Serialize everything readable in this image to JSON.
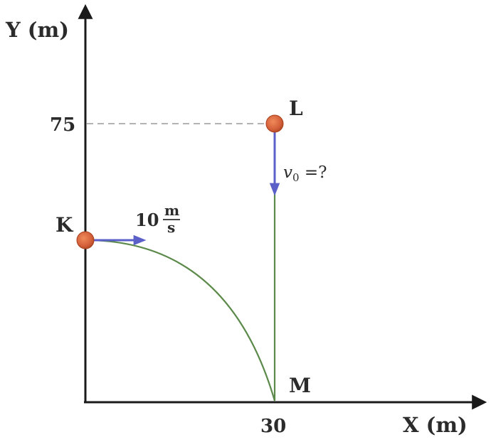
{
  "axes": {
    "y_label": "Y (m)",
    "x_label": "X (m)",
    "y_tick": "75",
    "x_tick": "30"
  },
  "points": {
    "k": {
      "label": "K"
    },
    "l": {
      "label": "L"
    },
    "m": {
      "label": "M"
    }
  },
  "velocity_k": {
    "value": "10",
    "unit_num": "m",
    "unit_den": "s"
  },
  "velocity_l": {
    "symbol": "v",
    "subscript": "0",
    "suffix": " =?"
  },
  "colors": {
    "axis": "#1a1a1a",
    "dash": "#9a9a9a",
    "trajectory": "#5b8a4a",
    "arrow": "#5a60c8",
    "ball": "#d4603a",
    "ball_edge": "#a8401e",
    "text": "#2b2b2b"
  }
}
